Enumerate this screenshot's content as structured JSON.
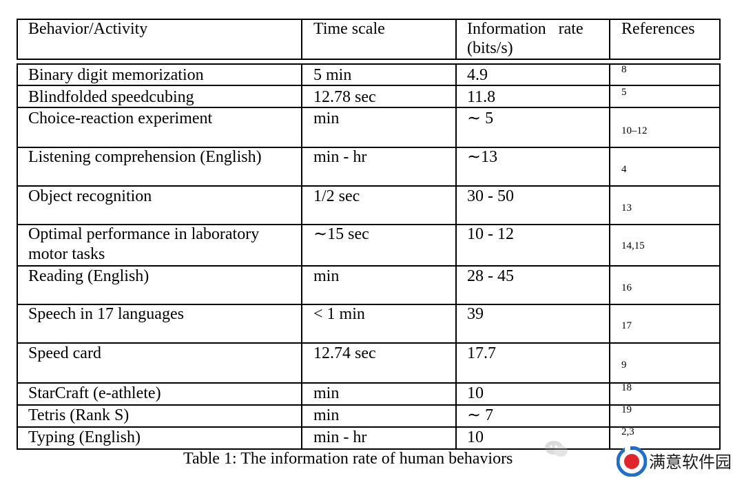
{
  "table": {
    "headers": {
      "behavior": "Behavior/Activity",
      "time": "Time scale",
      "rate_line1": "Information   rate",
      "rate_line2": "(bits/s)",
      "refs": "References"
    },
    "rows": [
      {
        "behavior": "Binary digit memorization",
        "time": "5 min",
        "rate": "4.9",
        "ref": "8"
      },
      {
        "behavior": "Blindfolded speedcubing",
        "time": "12.78 sec",
        "rate": "11.8",
        "ref": "5"
      },
      {
        "behavior": "Choice-reaction experiment",
        "time": "min",
        "rate": "∼ 5",
        "ref": "10–12"
      },
      {
        "behavior": "Listening comprehension (English)",
        "time": "min - hr",
        "rate": "∼13",
        "ref": "4"
      },
      {
        "behavior": "Object recognition",
        "time": "1/2 sec",
        "rate": "30 - 50",
        "ref": "13"
      },
      {
        "behavior": "Optimal performance in laboratory",
        "behavior2": "motor tasks",
        "time": "∼15 sec",
        "rate": "10 - 12",
        "ref": "14,15"
      },
      {
        "behavior": "Reading (English)",
        "time": "min",
        "rate": "28 - 45",
        "ref": "16"
      },
      {
        "behavior": "Speech in 17 languages",
        "time": "< 1 min",
        "rate": "39",
        "ref": "17"
      },
      {
        "behavior": "Speed card",
        "time": "12.74 sec",
        "rate": "17.7",
        "ref": "9"
      },
      {
        "behavior": "StarCraft (e-athlete)",
        "time": "min",
        "rate": "10",
        "ref": "18"
      },
      {
        "behavior": "Tetris (Rank S)",
        "time": "min",
        "rate": "∼ 7",
        "ref": "19"
      },
      {
        "behavior": "Typing (English)",
        "time": "min - hr",
        "rate": "10",
        "ref": "2,3"
      }
    ]
  },
  "caption": "Table 1: The information rate of human behaviors",
  "watermark": {
    "text": "满意软件园",
    "logo_icon": "circle-logo-icon",
    "wechat_icon": "wechat-icon",
    "logo_colors": {
      "outer": "#1f6fd1",
      "inner": "#e0262b"
    }
  }
}
